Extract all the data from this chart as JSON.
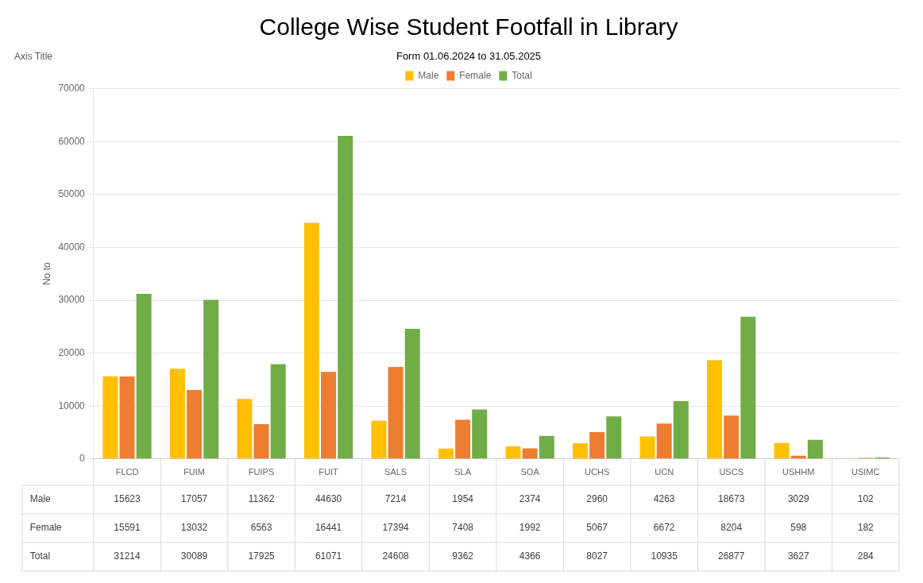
{
  "chart_data": {
    "type": "bar",
    "title": "College Wise Student Footfall in Library",
    "subtitle": "Form 01.06.2024 to 31.05.2025",
    "ylabel": "No to",
    "annotations": [
      "Axis Title"
    ],
    "categories": [
      "FLCD",
      "FUIM",
      "FUIPS",
      "FUIT",
      "SALS",
      "SLA",
      "SOA",
      "UCHS",
      "UCN",
      "USCS",
      "USHHM",
      "USIMC"
    ],
    "series": [
      {
        "name": "Male",
        "color": "#ffc000",
        "values": [
          15623,
          17057,
          11362,
          44630,
          7214,
          1954,
          2374,
          2960,
          4263,
          18673,
          3029,
          102
        ]
      },
      {
        "name": "Female",
        "color": "#ed7d31",
        "values": [
          15591,
          13032,
          6563,
          16441,
          17394,
          7408,
          1992,
          5067,
          6672,
          8204,
          598,
          182
        ]
      },
      {
        "name": "Total",
        "color": "#70ad47",
        "values": [
          31214,
          30089,
          17925,
          61071,
          24608,
          9362,
          4366,
          8027,
          10935,
          26877,
          3627,
          284
        ]
      }
    ],
    "ylim": [
      0,
      70000
    ],
    "yticks": [
      0,
      10000,
      20000,
      30000,
      40000,
      50000,
      60000,
      70000
    ],
    "grid": "y",
    "legend": "top",
    "data_labels": true
  }
}
